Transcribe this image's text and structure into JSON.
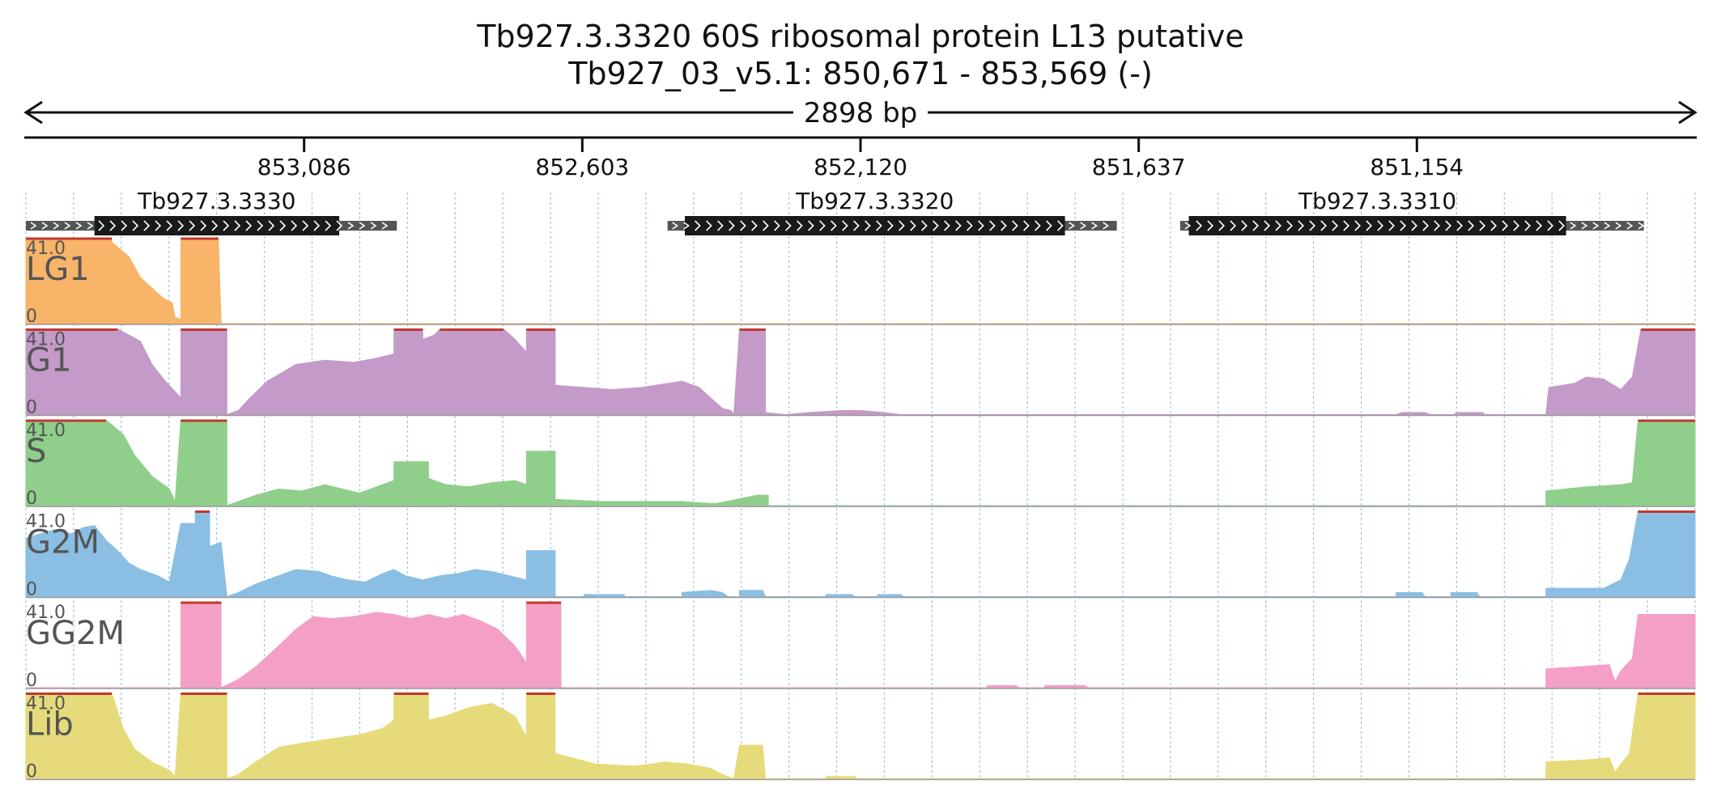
{
  "header": {
    "title_line1": "Tb927.3.3320  60S ribosomal protein L13  putative",
    "title_line2": "Tb927_03_v5.1: 850,671 - 853,569 (-)",
    "span_label": "2898 bp"
  },
  "chart_data": {
    "type": "area",
    "x_axis": {
      "start": 853569,
      "end": 850671,
      "reversed": true,
      "ticks": [
        "853,086",
        "852,603",
        "852,120",
        "851,637",
        "851,154"
      ],
      "tick_values": [
        853086,
        852603,
        852120,
        851637,
        851154
      ]
    },
    "ylim": [
      0,
      41.0
    ],
    "y_tick_labels": [
      "41.0",
      "0"
    ],
    "grid": "vertical dotted",
    "genes": [
      {
        "name": "Tb927.3.3330",
        "utr": [
          853569,
          852925
        ],
        "cds": [
          853450,
          853025
        ],
        "strand": "+"
      },
      {
        "name": "Tb927.3.3320",
        "utr": [
          852455,
          851675
        ],
        "cds": [
          852425,
          851765
        ],
        "strand": "+"
      },
      {
        "name": "Tb927.3.3310",
        "utr": [
          851565,
          850760
        ],
        "cds": [
          851550,
          850895
        ],
        "strand": "+"
      }
    ],
    "series": [
      {
        "name": "LG1",
        "color": "#f8b469",
        "points": [
          [
            853569,
            41
          ],
          [
            853420,
            41
          ],
          [
            853420,
            39
          ],
          [
            853390,
            32
          ],
          [
            853370,
            22
          ],
          [
            853350,
            17
          ],
          [
            853330,
            12
          ],
          [
            853315,
            10
          ],
          [
            853310,
            3
          ],
          [
            853300,
            2
          ],
          [
            853300,
            41
          ],
          [
            853235,
            41
          ],
          [
            853230,
            0
          ]
        ]
      },
      {
        "name": "G1",
        "color": "#c49ac8",
        "points": [
          [
            853569,
            41
          ],
          [
            853410,
            41
          ],
          [
            853370,
            35
          ],
          [
            853350,
            24
          ],
          [
            853330,
            17
          ],
          [
            853310,
            11
          ],
          [
            853300,
            8
          ],
          [
            853300,
            41
          ],
          [
            853220,
            41
          ],
          [
            853220,
            0
          ],
          [
            853200,
            2
          ],
          [
            853180,
            8
          ],
          [
            853150,
            16
          ],
          [
            853100,
            24
          ],
          [
            853050,
            26
          ],
          [
            853000,
            25
          ],
          [
            852960,
            27
          ],
          [
            852930,
            29
          ],
          [
            852930,
            41
          ],
          [
            852880,
            41
          ],
          [
            852880,
            36
          ],
          [
            852860,
            38
          ],
          [
            852850,
            41
          ],
          [
            852740,
            41
          ],
          [
            852720,
            36
          ],
          [
            852700,
            30
          ],
          [
            852700,
            41
          ],
          [
            852650,
            41
          ],
          [
            852650,
            14
          ],
          [
            852550,
            12
          ],
          [
            852500,
            13
          ],
          [
            852430,
            16
          ],
          [
            852400,
            13
          ],
          [
            852380,
            8
          ],
          [
            852360,
            3
          ],
          [
            852345,
            2
          ],
          [
            852340,
            0
          ],
          [
            852330,
            41
          ],
          [
            852285,
            41
          ],
          [
            852285,
            1
          ],
          [
            852250,
            0
          ],
          [
            852210,
            1
          ],
          [
            852150,
            2
          ],
          [
            852120,
            2
          ],
          [
            852080,
            1
          ],
          [
            852050,
            0
          ],
          [
            851190,
            0
          ],
          [
            851180,
            1
          ],
          [
            851140,
            1
          ],
          [
            851130,
            0
          ],
          [
            851090,
            0
          ],
          [
            851085,
            1
          ],
          [
            851040,
            1
          ],
          [
            851035,
            0
          ],
          [
            850930,
            0
          ],
          [
            850925,
            13
          ],
          [
            850880,
            15
          ],
          [
            850860,
            18
          ],
          [
            850830,
            17
          ],
          [
            850800,
            12
          ],
          [
            850780,
            18
          ],
          [
            850765,
            41
          ],
          [
            850671,
            41
          ]
        ]
      },
      {
        "name": "S",
        "color": "#8fcf8b",
        "points": [
          [
            853569,
            41
          ],
          [
            853430,
            41
          ],
          [
            853400,
            34
          ],
          [
            853380,
            24
          ],
          [
            853350,
            14
          ],
          [
            853320,
            8
          ],
          [
            853310,
            2
          ],
          [
            853300,
            41
          ],
          [
            853220,
            41
          ],
          [
            853220,
            0
          ],
          [
            853200,
            2
          ],
          [
            853170,
            5
          ],
          [
            853130,
            8
          ],
          [
            853090,
            7
          ],
          [
            853050,
            10
          ],
          [
            853020,
            8
          ],
          [
            852990,
            6
          ],
          [
            852950,
            10
          ],
          [
            852930,
            12
          ],
          [
            852930,
            21
          ],
          [
            852870,
            21
          ],
          [
            852870,
            13
          ],
          [
            852840,
            10
          ],
          [
            852800,
            9
          ],
          [
            852760,
            11
          ],
          [
            852720,
            12
          ],
          [
            852700,
            10
          ],
          [
            852700,
            26
          ],
          [
            852650,
            26
          ],
          [
            852650,
            3
          ],
          [
            852570,
            2
          ],
          [
            852510,
            2
          ],
          [
            852430,
            2
          ],
          [
            852380,
            1
          ],
          [
            852370,
            1
          ],
          [
            852300,
            5
          ],
          [
            852280,
            5
          ],
          [
            852280,
            0
          ],
          [
            850930,
            0
          ],
          [
            850930,
            7
          ],
          [
            850860,
            9
          ],
          [
            850800,
            10
          ],
          [
            850780,
            11
          ],
          [
            850770,
            41
          ],
          [
            850671,
            41
          ]
        ]
      },
      {
        "name": "G2M",
        "color": "#8abfe3",
        "points": [
          [
            853569,
            28
          ],
          [
            853520,
            32
          ],
          [
            853490,
            30
          ],
          [
            853470,
            33
          ],
          [
            853450,
            34
          ],
          [
            853430,
            27
          ],
          [
            853410,
            22
          ],
          [
            853390,
            16
          ],
          [
            853370,
            13
          ],
          [
            853340,
            10
          ],
          [
            853320,
            7
          ],
          [
            853300,
            35
          ],
          [
            853275,
            35
          ],
          [
            853275,
            41
          ],
          [
            853250,
            41
          ],
          [
            853250,
            24
          ],
          [
            853230,
            26
          ],
          [
            853220,
            0
          ],
          [
            853200,
            2
          ],
          [
            853170,
            6
          ],
          [
            853130,
            10
          ],
          [
            853100,
            13
          ],
          [
            853060,
            12
          ],
          [
            853040,
            10
          ],
          [
            853010,
            8
          ],
          [
            852980,
            7
          ],
          [
            852950,
            11
          ],
          [
            852930,
            13
          ],
          [
            852910,
            10
          ],
          [
            852880,
            8
          ],
          [
            852850,
            10
          ],
          [
            852820,
            11
          ],
          [
            852790,
            13
          ],
          [
            852760,
            12
          ],
          [
            852730,
            10
          ],
          [
            852700,
            8
          ],
          [
            852700,
            22
          ],
          [
            852650,
            22
          ],
          [
            852650,
            0
          ],
          [
            852600,
            0
          ],
          [
            852600,
            1
          ],
          [
            852530,
            1
          ],
          [
            852530,
            0
          ],
          [
            852430,
            0
          ],
          [
            852430,
            2
          ],
          [
            852380,
            3
          ],
          [
            852360,
            2
          ],
          [
            852350,
            0
          ],
          [
            852330,
            0
          ],
          [
            852330,
            3
          ],
          [
            852290,
            3
          ],
          [
            852285,
            0
          ],
          [
            852180,
            0
          ],
          [
            852180,
            1
          ],
          [
            852135,
            1
          ],
          [
            852130,
            0
          ],
          [
            852090,
            0
          ],
          [
            852090,
            1
          ],
          [
            852050,
            1
          ],
          [
            852045,
            0
          ],
          [
            851190,
            0
          ],
          [
            851190,
            2
          ],
          [
            851145,
            2
          ],
          [
            851140,
            0
          ],
          [
            851095,
            0
          ],
          [
            851095,
            2
          ],
          [
            851050,
            2
          ],
          [
            851045,
            0
          ],
          [
            850930,
            0
          ],
          [
            850930,
            4
          ],
          [
            850830,
            4
          ],
          [
            850800,
            8
          ],
          [
            850785,
            18
          ],
          [
            850770,
            41
          ],
          [
            850671,
            41
          ]
        ]
      },
      {
        "name": "GG2M",
        "color": "#f4a0c6",
        "points": [
          [
            853569,
            0
          ],
          [
            853300,
            0
          ],
          [
            853300,
            41
          ],
          [
            853230,
            41
          ],
          [
            853230,
            0
          ],
          [
            853200,
            4
          ],
          [
            853170,
            10
          ],
          [
            853130,
            20
          ],
          [
            853100,
            28
          ],
          [
            853070,
            34
          ],
          [
            853040,
            33
          ],
          [
            853000,
            34
          ],
          [
            852960,
            36
          ],
          [
            852930,
            35
          ],
          [
            852900,
            33
          ],
          [
            852870,
            35
          ],
          [
            852840,
            33
          ],
          [
            852810,
            35
          ],
          [
            852780,
            32
          ],
          [
            852750,
            28
          ],
          [
            852720,
            20
          ],
          [
            852700,
            12
          ],
          [
            852700,
            41
          ],
          [
            852650,
            41
          ],
          [
            852640,
            41
          ],
          [
            852640,
            0
          ],
          [
            851900,
            0
          ],
          [
            851900,
            1
          ],
          [
            851850,
            1
          ],
          [
            851845,
            0
          ],
          [
            851800,
            0
          ],
          [
            851800,
            1
          ],
          [
            851730,
            1
          ],
          [
            851725,
            0
          ],
          [
            850930,
            0
          ],
          [
            850930,
            9
          ],
          [
            850870,
            10
          ],
          [
            850820,
            11
          ],
          [
            850810,
            3
          ],
          [
            850800,
            8
          ],
          [
            850780,
            14
          ],
          [
            850770,
            35
          ],
          [
            850671,
            35
          ]
        ]
      },
      {
        "name": "Lib",
        "color": "#e6db7a",
        "points": [
          [
            853569,
            41
          ],
          [
            853420,
            41
          ],
          [
            853400,
            24
          ],
          [
            853380,
            14
          ],
          [
            853350,
            8
          ],
          [
            853320,
            4
          ],
          [
            853310,
            1
          ],
          [
            853300,
            41
          ],
          [
            853220,
            41
          ],
          [
            853220,
            0
          ],
          [
            853200,
            2
          ],
          [
            853170,
            8
          ],
          [
            853130,
            15
          ],
          [
            853090,
            17
          ],
          [
            853040,
            19
          ],
          [
            852990,
            21
          ],
          [
            852950,
            24
          ],
          [
            852930,
            28
          ],
          [
            852930,
            41
          ],
          [
            852870,
            41
          ],
          [
            852870,
            28
          ],
          [
            852840,
            30
          ],
          [
            852800,
            34
          ],
          [
            852760,
            36
          ],
          [
            852720,
            30
          ],
          [
            852700,
            20
          ],
          [
            852700,
            41
          ],
          [
            852650,
            41
          ],
          [
            852650,
            12
          ],
          [
            852580,
            7
          ],
          [
            852510,
            6
          ],
          [
            852460,
            8
          ],
          [
            852420,
            7
          ],
          [
            852380,
            5
          ],
          [
            852360,
            2
          ],
          [
            852340,
            0
          ],
          [
            852330,
            16
          ],
          [
            852290,
            16
          ],
          [
            852285,
            0
          ],
          [
            852180,
            0
          ],
          [
            852180,
            1
          ],
          [
            852130,
            1
          ],
          [
            852125,
            0
          ],
          [
            850930,
            0
          ],
          [
            850930,
            8
          ],
          [
            850860,
            9
          ],
          [
            850820,
            10
          ],
          [
            850810,
            3
          ],
          [
            850800,
            7
          ],
          [
            850785,
            12
          ],
          [
            850770,
            41
          ],
          [
            850671,
            41
          ]
        ]
      }
    ]
  }
}
